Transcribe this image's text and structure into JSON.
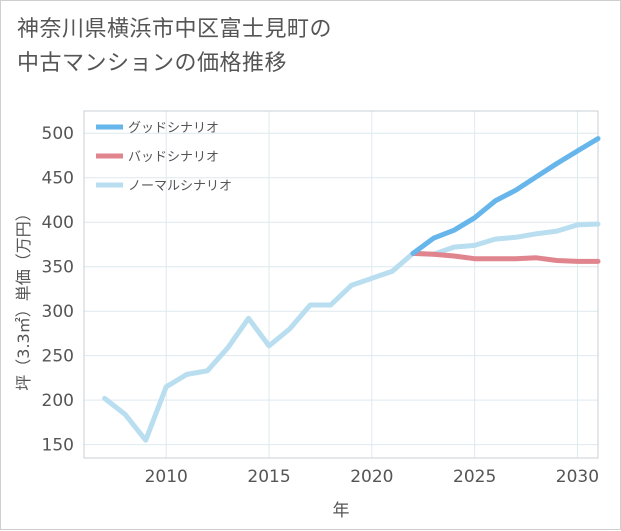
{
  "chart_data": {
    "type": "line",
    "title": [
      "神奈川県横浜市中区富士見町の",
      "中古マンションの価格推移"
    ],
    "xlabel": "年",
    "ylabel": "坪（3.3㎡）単価（万円）",
    "xlim": [
      2006,
      2031
    ],
    "ylim": [
      135,
      525
    ],
    "xticks": [
      2010,
      2015,
      2020,
      2025,
      2030
    ],
    "yticks": [
      150,
      200,
      250,
      300,
      350,
      400,
      450,
      500
    ],
    "grid": true,
    "legend_position": "top-left",
    "series": [
      {
        "name": "グッドシナリオ",
        "color": "#66b5eb",
        "x": [
          2022,
          2023,
          2024,
          2025,
          2026,
          2027,
          2028,
          2029,
          2030,
          2031
        ],
        "values": [
          365,
          382,
          391,
          405,
          424,
          436,
          451,
          466,
          480,
          494
        ]
      },
      {
        "name": "バッドシナリオ",
        "color": "#e0848d",
        "x": [
          2022,
          2023,
          2024,
          2025,
          2026,
          2027,
          2028,
          2029,
          2030,
          2031
        ],
        "values": [
          365,
          364,
          362,
          359,
          359,
          359,
          360,
          357,
          356,
          356
        ]
      },
      {
        "name": "ノーマルシナリオ",
        "color": "#b8def0",
        "x": [
          2007,
          2008,
          2009,
          2010,
          2011,
          2012,
          2013,
          2014,
          2015,
          2016,
          2017,
          2018,
          2019,
          2020,
          2021,
          2022,
          2023,
          2024,
          2025,
          2026,
          2027,
          2028,
          2029,
          2030,
          2031
        ],
        "values": [
          202,
          184,
          155,
          215,
          229,
          233,
          259,
          292,
          261,
          280,
          307,
          307,
          329,
          337,
          345,
          365,
          364,
          372,
          374,
          381,
          383,
          387,
          390,
          397,
          398
        ]
      }
    ]
  }
}
